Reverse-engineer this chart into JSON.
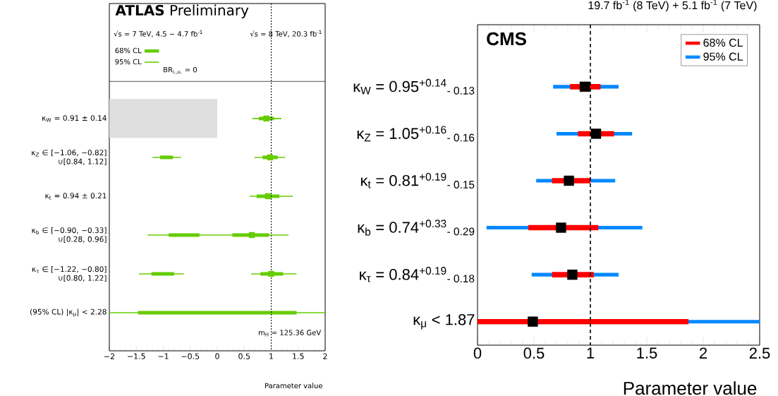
{
  "chart_data": [
    {
      "type": "bar",
      "orientation": "horizontal",
      "title": "**ATLAS** Preliminary",
      "categories": [
        "κ$_{W}$ = 0.91 ± 0.14",
        "κ$_{Z}$ ∈ [−1.06, −0.82] ∪[0.84, 1.12]",
        "κ$_{t}$ = 0.94 ± 0.21",
        "κ$_{b}$ ∈ [−0.90, −0.33] ∪[0.28, 0.96]",
        "κ$_{τ}$ ∈ [−1.22, −0.80] ∪[0.80, 1.22]",
        "(95% CL)  |κ$_{μ}$| < 2.28"
      ],
      "xlim": [
        -2,
        2
      ],
      "xticks": [
        {
          "value": -2,
          "label": "−2"
        },
        {
          "value": -1.5,
          "label": "−1.5"
        },
        {
          "value": -1,
          "label": "−1"
        },
        {
          "value": -0.5,
          "label": "−0.5"
        },
        0,
        0.5,
        1,
        1.5,
        2
      ],
      "xlabel": "Parameter value",
      "annotations": [
        "√s = 7 TeV, 4.5 − 4.7 fb$^{-1}$",
        "√s = 8 TeV, 20.3 fb$^{-1}$",
        "BR$_{i.,u.}$ = 0",
        "m$_{H}$ = 125.36 GeV"
      ],
      "legend": "top left",
      "marker": "square",
      "ref_lines": [
        {
          "axis": "x",
          "value": 1,
          "line_style": "dotted",
          "color": "#000000"
        }
      ],
      "series": [
        {
          "color": "#dedede",
          "base": [
            -2,
            null,
            null,
            null,
            null,
            null
          ],
          "values": [
            2,
            null,
            null,
            null,
            null,
            null
          ]
        },
        {
          "name": "95% CL",
          "color": "#66cc00",
          "base": [
            0.65,
            0.69,
            0.6,
            -1.29,
            0.63,
            -2
          ],
          "values": [
            0.54,
            0.57,
            0.8,
            2.61,
            0.84,
            4
          ]
        },
        {
          "color": "#66cc00",
          "base": [
            null,
            -1.2,
            null,
            null,
            -1.45,
            null
          ],
          "values": [
            null,
            0.53,
            null,
            null,
            0.83,
            null
          ]
        },
        {
          "name": "68% CL",
          "color": "#66cc00",
          "base": [
            0.77,
            0.84,
            0.73,
            0.28,
            0.8,
            -1.47
          ],
          "values": [
            0.28,
            0.28,
            0.42,
            0.68,
            0.42,
            2.94
          ]
        },
        {
          "color": "#66cc00",
          "base": [
            null,
            -1.06,
            null,
            -0.9,
            -1.22,
            null
          ],
          "values": [
            null,
            0.24,
            null,
            0.57,
            0.42,
            null
          ]
        },
        {
          "type": "scatter",
          "color": "#66cc00",
          "values": [
            0.91,
            0.98,
            0.94,
            0.64,
            1.0,
            null
          ]
        }
      ]
    },
    {
      "type": "bar",
      "orientation": "horizontal",
      "title": "19.7 fb$^{-1}$ (8 TeV) +  5.1 fb$^{-1}$ (7 TeV)",
      "categories": [
        "κ$_{W}$ = 0.95$^{+0.14}$$_{- 0.13}$",
        "κ$_{Z}$ = 1.05$^{+0.16}$$_{- 0.16}$",
        "κ$_{t}$ = 0.81$^{+0.19}$$_{- 0.15}$",
        "κ$_{b}$ = 0.74$^{+0.33}$$_{- 0.29}$",
        "κ$_{τ}$ = 0.84$^{+0.19}$$_{- 0.18}$",
        "κ$_{μ}$ < 1.87"
      ],
      "xlim": [
        0,
        2.5
      ],
      "xticks": [
        0,
        0.5,
        1,
        1.5,
        2,
        2.5
      ],
      "xlabel": "Parameter value",
      "annotations": [
        "CMS"
      ],
      "legend": "top right",
      "marker": "square",
      "ref_lines": [
        {
          "axis": "x",
          "value": 1,
          "line_style": "dashed",
          "color": "#000000"
        }
      ],
      "series": [
        {
          "name": "95% CL",
          "color": "#0088ff",
          "base": [
            0.67,
            0.7,
            0.52,
            0.08,
            0.48,
            0
          ],
          "values": [
            0.58,
            0.67,
            0.7,
            1.38,
            0.77,
            2.5
          ]
        },
        {
          "name": "68% CL",
          "color": "#ff0000",
          "base": [
            0.82,
            0.89,
            0.66,
            0.45,
            0.66,
            0
          ],
          "values": [
            0.27,
            0.32,
            0.34,
            0.62,
            0.37,
            1.87
          ]
        },
        {
          "type": "scatter",
          "color": "#000000",
          "values": [
            0.95,
            1.05,
            0.81,
            0.74,
            0.84,
            0.49
          ]
        }
      ]
    }
  ]
}
